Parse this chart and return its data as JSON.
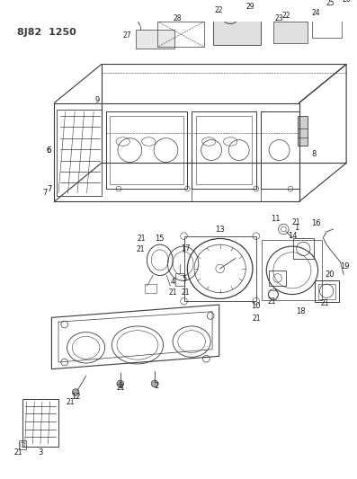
{
  "title": "8J82  1250",
  "background_color": "#ffffff",
  "line_color": "#3a3a3a",
  "figsize": [
    3.97,
    5.33
  ],
  "dpi": 100
}
